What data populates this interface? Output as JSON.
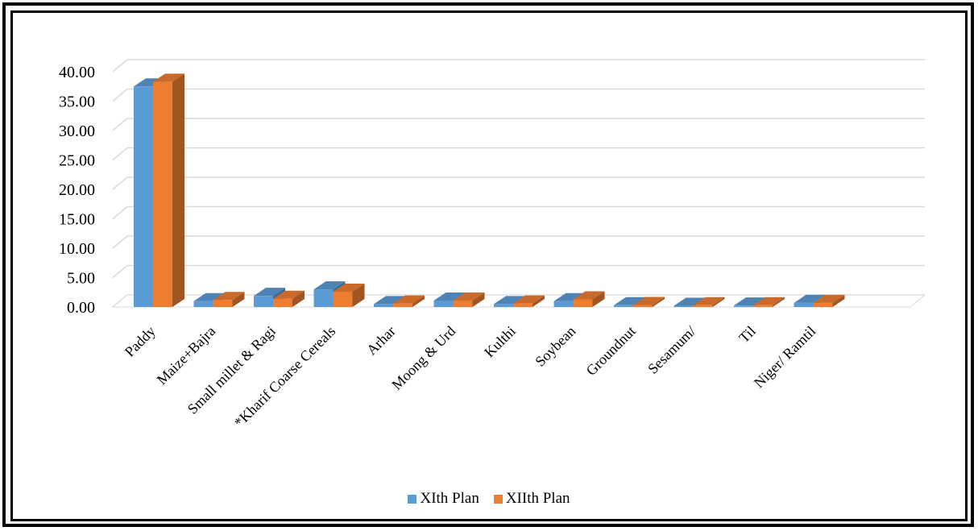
{
  "chart_data": {
    "type": "bar",
    "title": "",
    "xlabel": "",
    "ylabel": "",
    "ylim": [
      0,
      40
    ],
    "y_ticks": [
      "0.00",
      "5.00",
      "10.00",
      "15.00",
      "20.00",
      "25.00",
      "30.00",
      "35.00",
      "40.00"
    ],
    "grid": true,
    "legend_position": "bottom",
    "style": "3d-clustered-column",
    "categories": [
      "Paddy",
      "Maize+Bajra",
      "Small millet & Ragi",
      "*Kharif Coarse Cereals",
      "Arhar",
      "Moong & Urd",
      "Kulthi",
      "Soybean",
      "Groundnut",
      "Sesamum/",
      "Til",
      "Niger/ Ramtil"
    ],
    "series": [
      {
        "name": "XIth Plan",
        "color": "#5B9BD5",
        "values": [
          37.5,
          1.0,
          1.9,
          3.0,
          0.5,
          1.1,
          0.5,
          1.0,
          0.3,
          0.2,
          0.25,
          0.7
        ]
      },
      {
        "name": "XIIth Plan",
        "color": "#ED7D31",
        "values": [
          38.3,
          1.2,
          1.4,
          2.6,
          0.6,
          1.1,
          0.6,
          1.3,
          0.35,
          0.3,
          0.3,
          0.7
        ]
      }
    ]
  }
}
